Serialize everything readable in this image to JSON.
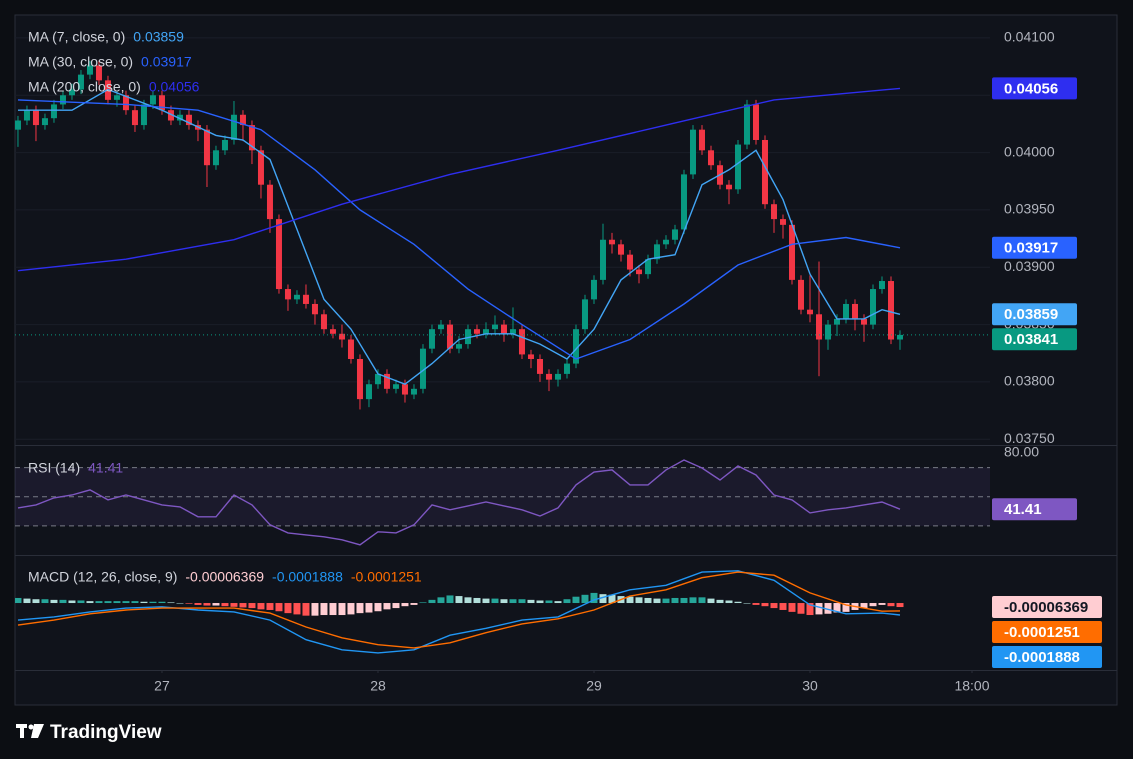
{
  "chart_data": [
    {
      "type": "candlestick",
      "x": [
        0,
        1,
        2,
        3,
        4,
        5,
        6,
        7,
        8,
        9,
        10,
        11,
        12,
        13,
        14,
        15,
        16,
        17,
        18,
        19,
        20,
        21,
        22,
        23,
        24,
        25,
        26,
        27,
        28,
        29,
        30,
        31,
        32,
        33,
        34,
        35,
        36,
        37,
        38,
        39,
        40,
        41,
        42,
        43,
        44,
        45,
        46,
        47,
        48,
        49,
        50,
        51,
        52,
        53,
        54,
        55,
        56,
        57,
        58,
        59,
        60,
        61,
        62,
        63,
        64,
        65,
        66,
        67,
        68,
        69,
        70,
        71,
        72,
        73,
        74,
        75,
        76,
        77,
        78,
        79,
        80,
        81,
        82,
        83,
        84,
        85,
        86,
        87,
        88,
        89,
        90,
        91,
        92,
        93,
        94,
        95,
        96,
        97,
        98
      ],
      "open": [
        0.0402,
        0.04028,
        0.04037,
        0.04024,
        0.0403,
        0.04042,
        0.0405,
        0.04055,
        0.04068,
        0.04076,
        0.04063,
        0.04046,
        0.0405,
        0.04037,
        0.04024,
        0.04042,
        0.0405,
        0.04037,
        0.04028,
        0.04033,
        0.04024,
        0.0402,
        0.03989,
        0.04002,
        0.04011,
        0.04033,
        0.04024,
        0.04002,
        0.03972,
        0.03942,
        0.03881,
        0.03872,
        0.03876,
        0.03868,
        0.03859,
        0.03846,
        0.03842,
        0.03837,
        0.0382,
        0.03785,
        0.03798,
        0.03807,
        0.03794,
        0.03798,
        0.03789,
        0.03794,
        0.03829,
        0.03846,
        0.0385,
        0.03829,
        0.03833,
        0.03846,
        0.03842,
        0.03846,
        0.0385,
        0.03842,
        0.03846,
        0.03824,
        0.0382,
        0.03807,
        0.03802,
        0.03807,
        0.03816,
        0.03846,
        0.03872,
        0.03889,
        0.03924,
        0.0392,
        0.03911,
        0.03898,
        0.03894,
        0.03907,
        0.0392,
        0.03924,
        0.03933,
        0.03981,
        0.0402,
        0.04002,
        0.03989,
        0.03972,
        0.03968,
        0.04007,
        0.04042,
        0.04011,
        0.03955,
        0.03942,
        0.03937,
        0.03889,
        0.03863,
        0.03859,
        0.03837,
        0.0385,
        0.03855,
        0.03868,
        0.03855,
        0.0385,
        0.03881,
        0.03888,
        0.03837
      ],
      "high": [
        0.04032,
        0.04041,
        0.04041,
        0.04034,
        0.04046,
        0.04054,
        0.0406,
        0.04072,
        0.0408,
        0.0408,
        0.04067,
        0.04054,
        0.04054,
        0.04041,
        0.04046,
        0.04054,
        0.04054,
        0.04041,
        0.04037,
        0.04037,
        0.04028,
        0.04024,
        0.04006,
        0.04015,
        0.04045,
        0.04037,
        0.04028,
        0.04006,
        0.03976,
        0.03946,
        0.03885,
        0.0388,
        0.03885,
        0.03872,
        0.03863,
        0.0385,
        0.0385,
        0.03841,
        0.03824,
        0.03802,
        0.03811,
        0.03811,
        0.03802,
        0.03802,
        0.03798,
        0.03833,
        0.0385,
        0.03854,
        0.03854,
        0.0384,
        0.0385,
        0.0385,
        0.03852,
        0.03858,
        0.03854,
        0.03865,
        0.0385,
        0.03828,
        0.03824,
        0.03811,
        0.03811,
        0.0382,
        0.0385,
        0.03876,
        0.03893,
        0.03938,
        0.0393,
        0.03924,
        0.03915,
        0.03902,
        0.03911,
        0.03924,
        0.03928,
        0.03937,
        0.03985,
        0.04024,
        0.04024,
        0.04006,
        0.03993,
        0.03976,
        0.04011,
        0.04046,
        0.04046,
        0.04015,
        0.03959,
        0.03946,
        0.03941,
        0.03893,
        0.03893,
        0.03905,
        0.03854,
        0.03859,
        0.03872,
        0.03872,
        0.03859,
        0.03885,
        0.03892,
        0.03892,
        0.03845
      ],
      "low": [
        0.04005,
        0.04024,
        0.0401,
        0.0402,
        0.04026,
        0.04038,
        0.04046,
        0.04051,
        0.04064,
        0.04059,
        0.04042,
        0.0404,
        0.04033,
        0.04018,
        0.0402,
        0.04038,
        0.04033,
        0.04024,
        0.04024,
        0.0402,
        0.0401,
        0.0397,
        0.03985,
        0.03998,
        0.04007,
        0.0401,
        0.0399,
        0.0396,
        0.0393,
        0.03877,
        0.03862,
        0.03868,
        0.03864,
        0.0385,
        0.03842,
        0.03838,
        0.0383,
        0.03816,
        0.03776,
        0.03778,
        0.03794,
        0.0379,
        0.0379,
        0.03782,
        0.03785,
        0.0379,
        0.03825,
        0.03842,
        0.03825,
        0.03825,
        0.03829,
        0.03838,
        0.03838,
        0.03842,
        0.03835,
        0.03838,
        0.0382,
        0.03812,
        0.038,
        0.03792,
        0.03796,
        0.03803,
        0.03812,
        0.03842,
        0.03868,
        0.03885,
        0.03912,
        0.03905,
        0.03892,
        0.03886,
        0.0389,
        0.03903,
        0.03916,
        0.0392,
        0.03929,
        0.03977,
        0.03998,
        0.03985,
        0.03968,
        0.03955,
        0.03964,
        0.04003,
        0.04007,
        0.03951,
        0.0393,
        0.03925,
        0.03885,
        0.03859,
        0.03852,
        0.03805,
        0.03828,
        0.0384,
        0.03851,
        0.03845,
        0.03835,
        0.03846,
        0.03877,
        0.03833,
        0.03828
      ],
      "close": [
        0.04028,
        0.04037,
        0.04024,
        0.0403,
        0.04042,
        0.0405,
        0.04055,
        0.04068,
        0.04076,
        0.04063,
        0.04046,
        0.0405,
        0.04037,
        0.04024,
        0.04042,
        0.0405,
        0.04037,
        0.04028,
        0.04033,
        0.04024,
        0.0402,
        0.03989,
        0.04002,
        0.04011,
        0.04033,
        0.04024,
        0.04002,
        0.03972,
        0.03942,
        0.03881,
        0.03872,
        0.03876,
        0.03868,
        0.03859,
        0.03846,
        0.03842,
        0.03837,
        0.0382,
        0.03785,
        0.03798,
        0.03807,
        0.03794,
        0.03798,
        0.03789,
        0.03794,
        0.03829,
        0.03846,
        0.0385,
        0.03829,
        0.03833,
        0.03846,
        0.03842,
        0.03846,
        0.0385,
        0.03842,
        0.03846,
        0.03824,
        0.0382,
        0.03807,
        0.03802,
        0.03807,
        0.03816,
        0.03846,
        0.03872,
        0.03889,
        0.03924,
        0.0392,
        0.03911,
        0.03898,
        0.03894,
        0.03907,
        0.0392,
        0.03924,
        0.03933,
        0.03981,
        0.0402,
        0.04002,
        0.03989,
        0.03972,
        0.03968,
        0.04007,
        0.04042,
        0.04011,
        0.03955,
        0.03942,
        0.03937,
        0.03889,
        0.03863,
        0.03859,
        0.03837,
        0.0385,
        0.03855,
        0.03868,
        0.03855,
        0.0385,
        0.03881,
        0.03888,
        0.03837,
        0.03841
      ],
      "up_color": "#089981",
      "down_color": "#f23645",
      "series": [
        {
          "name": "MA (7, close, 0)",
          "color": "#42a5f5",
          "x": [
            0,
            6,
            10,
            16,
            22,
            25,
            28,
            31,
            34,
            37,
            40,
            43,
            46,
            49,
            52,
            55,
            58,
            61,
            64,
            67,
            70,
            73,
            76,
            79,
            82,
            85,
            88,
            91,
            94,
            96,
            98
          ],
          "values": [
            0.04037,
            0.04037,
            0.04055,
            0.04037,
            0.04015,
            0.04011,
            0.03994,
            0.03933,
            0.03872,
            0.03846,
            0.03807,
            0.03798,
            0.03816,
            0.03837,
            0.03842,
            0.03842,
            0.03833,
            0.0382,
            0.03846,
            0.03889,
            0.03907,
            0.03911,
            0.03972,
            0.03985,
            0.04002,
            0.03959,
            0.03894,
            0.03855,
            0.03855,
            0.03863,
            0.03859
          ]
        },
        {
          "name": "MA (30, close, 0)",
          "color": "#2962ff",
          "x": [
            0,
            12,
            20,
            27,
            33,
            38,
            44,
            50,
            56,
            62,
            68,
            74,
            80,
            86,
            92,
            98
          ],
          "values": [
            0.04046,
            0.04042,
            0.04037,
            0.0402,
            0.03985,
            0.0395,
            0.0392,
            0.03881,
            0.0385,
            0.0382,
            0.03837,
            0.03868,
            0.03902,
            0.0392,
            0.03926,
            0.03917
          ]
        },
        {
          "name": "MA (200, close, 0)",
          "color": "#2e2ef0",
          "x": [
            0,
            12,
            24,
            36,
            48,
            60,
            72,
            84,
            98
          ],
          "values": [
            0.03897,
            0.03907,
            0.03924,
            0.03955,
            0.03981,
            0.04002,
            0.04024,
            0.04046,
            0.04056
          ]
        }
      ],
      "ylim": [
        0.03745,
        0.0412
      ],
      "yticks": [
        {
          "value": 0.041,
          "label": "0.04100"
        },
        {
          "value": 0.0405,
          "label": "0.04050"
        },
        {
          "value": 0.04,
          "label": "0.04000"
        },
        {
          "value": 0.0395,
          "label": "0.03950"
        },
        {
          "value": 0.039,
          "label": "0.03900"
        },
        {
          "value": 0.0385,
          "label": "0.03850"
        },
        {
          "value": 0.038,
          "label": "0.03800"
        },
        {
          "value": 0.0375,
          "label": "0.03750"
        }
      ],
      "xlim": [
        -0.33,
        108
      ],
      "xticks": [
        {
          "value": 16,
          "label": "27"
        },
        {
          "value": 40,
          "label": "28"
        },
        {
          "value": 64,
          "label": "29"
        },
        {
          "value": 88,
          "label": "30"
        },
        {
          "value": 106,
          "label": "18:00"
        }
      ]
    },
    {
      "type": "line",
      "name": "RSI (14)",
      "color": "#7e57c2",
      "x": [
        0,
        2,
        4,
        6,
        8,
        10,
        12,
        14,
        16,
        18,
        20,
        22,
        24,
        26,
        28,
        30,
        32,
        34,
        36,
        38,
        40,
        42,
        44,
        46,
        48,
        50,
        52,
        54,
        56,
        58,
        60,
        62,
        64,
        66,
        68,
        70,
        72,
        74,
        76,
        78,
        80,
        82,
        84,
        86,
        88,
        90,
        92,
        94,
        96,
        98
      ],
      "values": [
        42.3,
        44.4,
        49.2,
        51.2,
        54.7,
        47.8,
        51.2,
        47.8,
        44.4,
        43.0,
        36.2,
        36.2,
        51.2,
        44.4,
        30.7,
        25.2,
        23.8,
        22.5,
        20.4,
        17.0,
        25.9,
        25.2,
        30.7,
        44.4,
        41.0,
        43.7,
        46.4,
        43.7,
        41.0,
        36.8,
        42.3,
        58.1,
        67.0,
        68.4,
        58.1,
        58.1,
        68.4,
        75.2,
        69.7,
        61.5,
        71.1,
        64.9,
        51.2,
        47.8,
        38.9,
        41.0,
        42.3,
        44.4,
        46.4,
        41.41
      ],
      "levels": [
        70,
        50,
        30
      ],
      "ylim": [
        10,
        85.5
      ],
      "yticks": [
        {
          "value": 80,
          "label": "80.00"
        }
      ]
    },
    {
      "type": "macd",
      "name": "MACD (12, 26, close, 9)",
      "histogram": {
        "color_up_rising": "#26a69a",
        "color_up_falling": "#b2dfdb",
        "color_down_falling": "#ff5252",
        "color_down_rising": "#ffcdd2",
        "x": [
          0,
          1,
          2,
          3,
          4,
          5,
          6,
          7,
          8,
          9,
          10,
          11,
          12,
          13,
          14,
          15,
          16,
          17,
          18,
          19,
          20,
          21,
          22,
          23,
          24,
          25,
          26,
          27,
          28,
          29,
          30,
          31,
          32,
          33,
          34,
          35,
          36,
          37,
          38,
          39,
          40,
          41,
          42,
          43,
          44,
          45,
          46,
          47,
          48,
          49,
          50,
          51,
          52,
          53,
          54,
          55,
          56,
          57,
          58,
          59,
          60,
          61,
          62,
          63,
          64,
          65,
          66,
          67,
          68,
          69,
          70,
          71,
          72,
          73,
          74,
          75,
          76,
          77,
          78,
          79,
          80,
          81,
          82,
          83,
          84,
          85,
          86,
          87,
          88,
          89,
          90,
          91,
          92,
          93,
          94,
          95,
          96,
          97,
          98
        ],
        "values": [
          8e-05,
          7e-05,
          6e-05,
          6e-05,
          5e-05,
          5e-05,
          4e-05,
          4e-05,
          3e-05,
          3e-05,
          3e-05,
          3e-05,
          3e-05,
          3e-05,
          2e-05,
          2e-05,
          2e-05,
          1e-05,
          0,
          -1e-05,
          -3e-05,
          -4e-05,
          -4e-05,
          -5e-05,
          -6e-05,
          -7e-05,
          -8e-05,
          -0.0001,
          -0.00011,
          -0.00013,
          -0.00016,
          -0.00018,
          -0.0002,
          -0.0002,
          -0.00019,
          -0.00019,
          -0.00019,
          -0.00018,
          -0.00016,
          -0.00015,
          -0.00013,
          -0.0001,
          -8e-05,
          -5e-05,
          -3e-05,
          1e-05,
          5e-05,
          9e-05,
          0.00012,
          0.00011,
          9e-05,
          8e-05,
          7e-05,
          7e-05,
          6e-05,
          6e-05,
          6e-05,
          5e-05,
          4e-05,
          4e-05,
          3e-05,
          6e-05,
          0.0001,
          0.00013,
          0.00016,
          0.00014,
          0.00013,
          0.00011,
          0.0001,
          9e-05,
          8e-05,
          7e-05,
          7e-05,
          8e-05,
          8e-05,
          9e-05,
          9e-05,
          7e-05,
          5e-05,
          4e-05,
          2e-05,
          0,
          -3e-05,
          -5e-05,
          -8e-05,
          -0.00011,
          -0.00014,
          -0.00017,
          -0.00019,
          -0.00018,
          -0.00017,
          -0.00015,
          -0.00014,
          -0.00011,
          -8e-05,
          -5e-05,
          -3e-05,
          -5e-05,
          -6.369e-05
        ]
      },
      "series": [
        {
          "name": "MACD",
          "color": "#2196f3",
          "x": [
            0,
            4,
            8,
            12,
            16,
            20,
            24,
            28,
            32,
            36,
            40,
            44,
            48,
            52,
            56,
            60,
            64,
            68,
            72,
            76,
            80,
            84,
            88,
            92,
            96,
            98
          ],
          "values": [
            -0.00027,
            -0.00022,
            -0.00014,
            -8e-05,
            -6e-05,
            -0.00011,
            -0.00014,
            -0.00027,
            -0.00058,
            -0.00074,
            -0.00079,
            -0.00074,
            -0.00051,
            -0.0004,
            -0.00027,
            -0.00022,
            5e-05,
            0.00021,
            0.00028,
            0.00049,
            0.00051,
            0.00036,
            -3e-05,
            -0.00017,
            -0.00016,
            -0.0001888
          ]
        },
        {
          "name": "Signal",
          "color": "#ff6d00",
          "x": [
            0,
            4,
            8,
            12,
            16,
            20,
            24,
            28,
            32,
            36,
            40,
            44,
            48,
            52,
            56,
            60,
            64,
            68,
            72,
            76,
            80,
            84,
            88,
            92,
            96,
            98
          ],
          "values": [
            -0.00035,
            -0.00027,
            -0.00017,
            -0.00011,
            -8e-05,
            -8e-05,
            -8e-05,
            -0.00016,
            -0.00038,
            -0.00055,
            -0.00066,
            -0.00071,
            -0.00063,
            -0.00047,
            -0.00033,
            -0.00025,
            -0.00011,
            0.00011,
            0.00021,
            0.0004,
            0.00049,
            0.00044,
            0.00016,
            -3e-05,
            -0.00013,
            -0.0001251
          ]
        }
      ],
      "ylim": [
        -0.00106,
        0.00076
      ]
    }
  ],
  "brand": "TradingView"
}
